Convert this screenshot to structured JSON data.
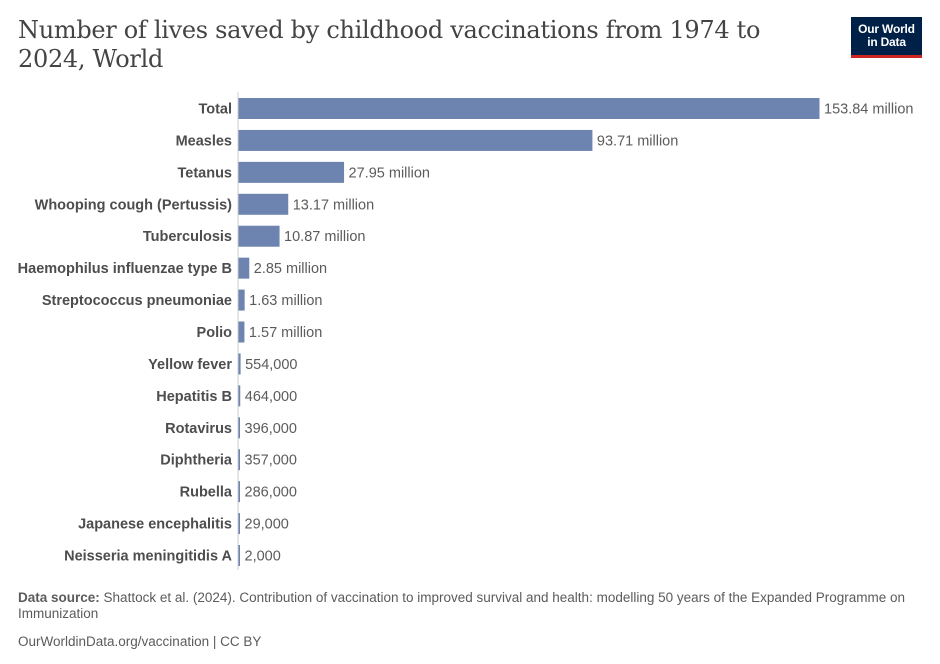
{
  "title": "Number of lives saved by childhood vaccinations from 1974 to 2024, World",
  "logo": {
    "line1": "Our World",
    "line2": "in Data"
  },
  "footer": {
    "source_label": "Data source:",
    "source_text": "Shattock et al. (2024). Contribution of vaccination to improved survival and health: modelling 50 years of the Expanded Programme on Immunization",
    "url": "OurWorldinData.org/vaccination",
    "license": "| CC BY"
  },
  "colors": {
    "bar": "#6d84b0",
    "axis": "#cccccc"
  },
  "chart_data": {
    "type": "bar",
    "orientation": "horizontal",
    "title": "Number of lives saved by childhood vaccinations from 1974 to 2024, World",
    "categories": [
      "Total",
      "Measles",
      "Tetanus",
      "Whooping cough (Pertussis)",
      "Tuberculosis",
      "Haemophilus influenzae type B",
      "Streptococcus pneumoniae",
      "Polio",
      "Yellow fever",
      "Hepatitis B",
      "Rotavirus",
      "Diphtheria",
      "Rubella",
      "Japanese encephalitis",
      "Neisseria meningitidis A"
    ],
    "values": [
      153840000,
      93710000,
      27950000,
      13170000,
      10870000,
      2850000,
      1630000,
      1570000,
      554000,
      464000,
      396000,
      357000,
      286000,
      29000,
      2000
    ],
    "value_labels": [
      "153.84 million",
      "93.71 million",
      "27.95 million",
      "13.17 million",
      "10.87 million",
      "2.85 million",
      "1.63 million",
      "1.57 million",
      "554,000",
      "464,000",
      "396,000",
      "357,000",
      "286,000",
      "29,000",
      "2,000"
    ],
    "xlim": [
      0,
      153840000
    ],
    "grid": false
  }
}
